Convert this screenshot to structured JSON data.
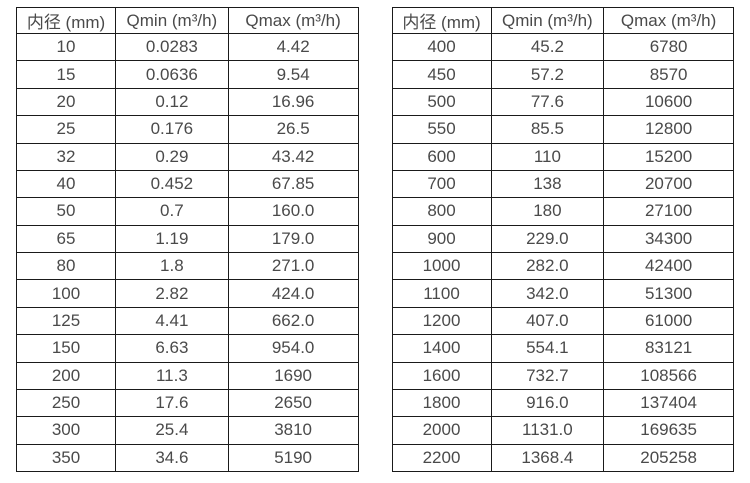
{
  "colors": {
    "page_background": "#ffffff",
    "border": "#1a1a1a",
    "text": "#4a4a4a"
  },
  "tables": [
    {
      "name": "small-diameters",
      "headers": [
        "内径 (mm)",
        "Qmin (m³/h)",
        "Qmax (m³/h)"
      ],
      "rows": [
        [
          "10",
          "0.0283",
          "4.42"
        ],
        [
          "15",
          "0.0636",
          "9.54"
        ],
        [
          "20",
          "0.12",
          "16.96"
        ],
        [
          "25",
          "0.176",
          "26.5"
        ],
        [
          "32",
          "0.29",
          "43.42"
        ],
        [
          "40",
          "0.452",
          "67.85"
        ],
        [
          "50",
          "0.7",
          "160.0"
        ],
        [
          "65",
          "1.19",
          "179.0"
        ],
        [
          "80",
          "1.8",
          "271.0"
        ],
        [
          "100",
          "2.82",
          "424.0"
        ],
        [
          "125",
          "4.41",
          "662.0"
        ],
        [
          "150",
          "6.63",
          "954.0"
        ],
        [
          "200",
          "11.3",
          "1690"
        ],
        [
          "250",
          "17.6",
          "2650"
        ],
        [
          "300",
          "25.4",
          "3810"
        ],
        [
          "350",
          "34.6",
          "5190"
        ]
      ]
    },
    {
      "name": "large-diameters",
      "headers": [
        "内径 (mm)",
        "Qmin (m³/h)",
        "Qmax (m³/h)"
      ],
      "rows": [
        [
          "400",
          "45.2",
          "6780"
        ],
        [
          "450",
          "57.2",
          "8570"
        ],
        [
          "500",
          "77.6",
          "10600"
        ],
        [
          "550",
          "85.5",
          "12800"
        ],
        [
          "600",
          "110",
          "15200"
        ],
        [
          "700",
          "138",
          "20700"
        ],
        [
          "800",
          "180",
          "27100"
        ],
        [
          "900",
          "229.0",
          "34300"
        ],
        [
          "1000",
          "282.0",
          "42400"
        ],
        [
          "1100",
          "342.0",
          "51300"
        ],
        [
          "1200",
          "407.0",
          "61000"
        ],
        [
          "1400",
          "554.1",
          "83121"
        ],
        [
          "1600",
          "732.7",
          "108566"
        ],
        [
          "1800",
          "916.0",
          "137404"
        ],
        [
          "2000",
          "1131.0",
          "169635"
        ],
        [
          "2200",
          "1368.4",
          "205258"
        ]
      ]
    }
  ]
}
